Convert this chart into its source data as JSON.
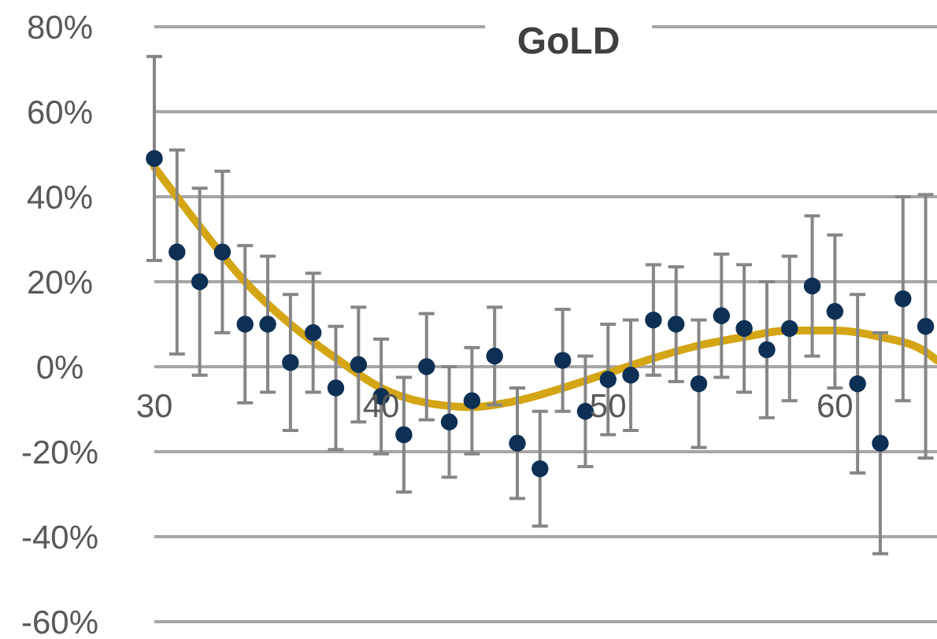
{
  "chart_data": {
    "type": "scatter",
    "title": "GoLD",
    "xlim": [
      30,
      64.5
    ],
    "xticks": [
      30,
      40,
      50,
      60
    ],
    "ylim": [
      -60,
      80
    ],
    "yticks": [
      {
        "value": -60,
        "label": "-60%"
      },
      {
        "value": -40,
        "label": "-40%"
      },
      {
        "value": -20,
        "label": "-20%"
      },
      {
        "value": 0,
        "label": "0%"
      },
      {
        "value": 20,
        "label": "20%"
      },
      {
        "value": 40,
        "label": "40%"
      },
      {
        "value": 60,
        "label": "60%"
      },
      {
        "value": 80,
        "label": "80%"
      }
    ],
    "grid": "y",
    "marker": "circle",
    "series": [
      {
        "color": "#0e3055",
        "x": [
          30,
          31,
          32,
          33,
          34,
          35,
          36,
          37,
          38,
          39,
          40,
          41,
          42,
          43,
          44,
          45,
          46,
          47,
          48,
          49,
          50,
          51,
          52,
          53,
          54,
          55,
          56,
          57,
          58,
          59,
          60,
          61,
          62,
          63,
          64
        ],
        "values": [
          49,
          27,
          20,
          27,
          10,
          10,
          1,
          8,
          -5,
          0.5,
          -7,
          -16,
          0,
          -13,
          -8,
          2.5,
          -18,
          -24,
          1.5,
          -10.5,
          -3,
          -2,
          11,
          10,
          -4,
          12,
          9,
          4,
          9,
          19,
          13,
          -4,
          -18,
          16,
          9.5
        ],
        "errors": [
          24,
          24,
          22,
          19,
          18.5,
          16,
          16,
          14,
          14.5,
          13.5,
          13.5,
          13.5,
          12.5,
          13,
          12.5,
          11.5,
          13,
          13.5,
          12,
          13,
          13,
          13,
          13,
          13.5,
          15,
          14.5,
          15,
          16,
          17,
          16.5,
          18,
          21,
          26,
          24,
          31
        ]
      },
      {
        "type": "line",
        "color": "#d4a514",
        "marker": "none",
        "x": [
          30,
          32,
          34,
          36,
          38,
          40,
          42,
          44,
          46,
          48,
          50,
          52,
          54,
          56,
          58,
          60,
          62,
          64,
          64.5
        ],
        "values": [
          47,
          33,
          20,
          10,
          2,
          -5,
          -8.5,
          -9.5,
          -8,
          -5,
          -1.5,
          2,
          5,
          7,
          8.5,
          8.5,
          7,
          3.5,
          1.5
        ]
      }
    ]
  }
}
